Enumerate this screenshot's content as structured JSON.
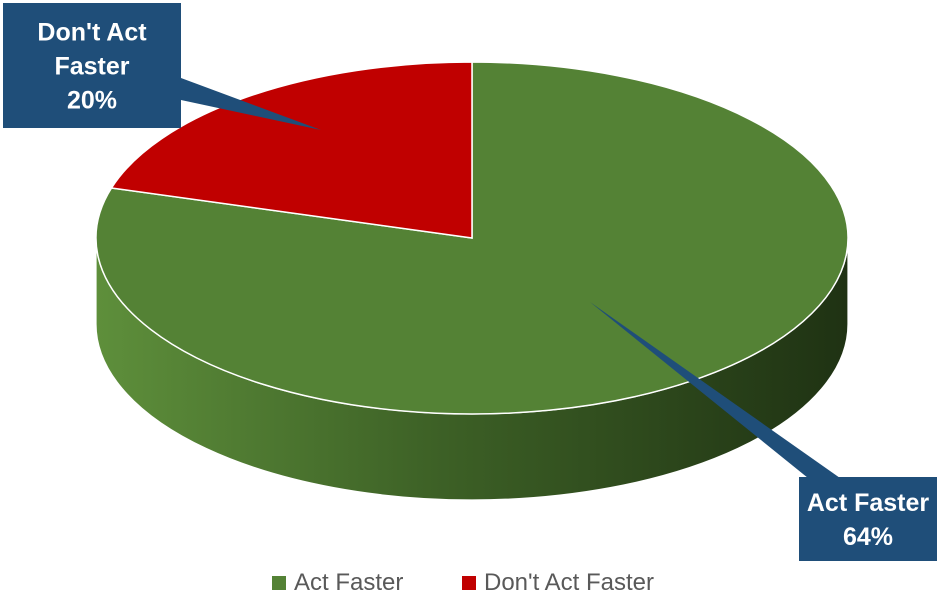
{
  "chart_data": {
    "type": "pie",
    "style": "3d",
    "title": "",
    "slices": [
      {
        "label": "Act Faster",
        "value": 64,
        "display": "64%",
        "color": "#548235",
        "callout_lines": [
          "Act Faster",
          "64%"
        ]
      },
      {
        "label": "Don't Act Faster",
        "value": 20,
        "display": "20%",
        "color": "#c00000",
        "callout_lines": [
          "Don't Act",
          "Faster",
          "20%"
        ]
      }
    ],
    "legend": {
      "placement": "bottom",
      "items": [
        {
          "label": "Act Faster",
          "color": "#548235"
        },
        {
          "label": "Don't Act Faster",
          "color": "#c00000"
        }
      ]
    },
    "callout_color": "#1f4e79"
  }
}
